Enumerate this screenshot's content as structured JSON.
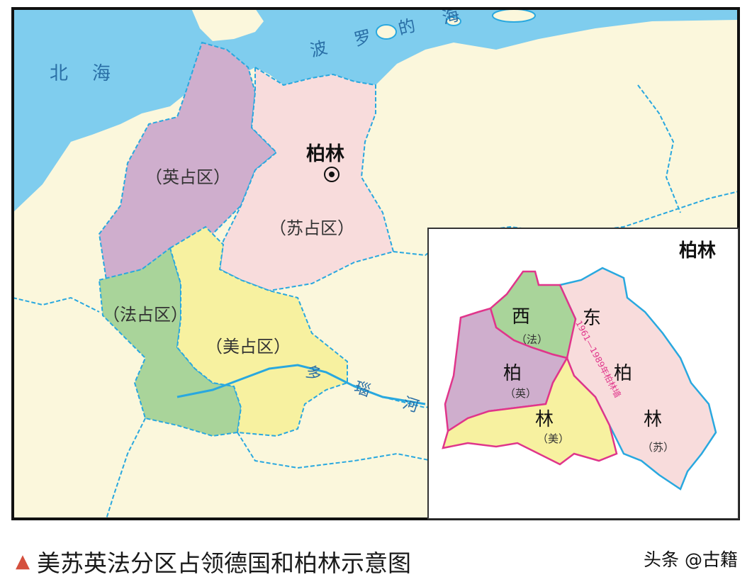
{
  "map": {
    "sea_north": "北海",
    "sea_baltic": "波罗的海",
    "capital_label": "柏林",
    "zone_british": "（英占区）",
    "zone_soviet": "（苏占区）",
    "zone_french": "（法占区）",
    "zone_american": "（美占区）",
    "river_danube": "多瑙河"
  },
  "inset": {
    "title": "柏林",
    "west_char_1": "西",
    "west_char_2": "柏",
    "west_char_3": "林",
    "east_char_1": "东",
    "east_char_2": "柏",
    "east_char_3": "林",
    "sector_french": "（法）",
    "sector_british": "（英）",
    "sector_american": "（美）",
    "sector_soviet": "（苏）",
    "wall_label": "1961—1989年柏林墙"
  },
  "caption": {
    "marker": "▲",
    "text": "美苏英法分区占领德国和柏林示意图"
  },
  "watermark": "头条 @古籍",
  "colors": {
    "sea": "#7fcdee",
    "land": "#fbf7dc",
    "british": "#cfaecd",
    "soviet": "#f8dcdc",
    "french": "#a9d49a",
    "american": "#f7f1a0",
    "border": "#29a8df",
    "wall": "#e0358b"
  }
}
